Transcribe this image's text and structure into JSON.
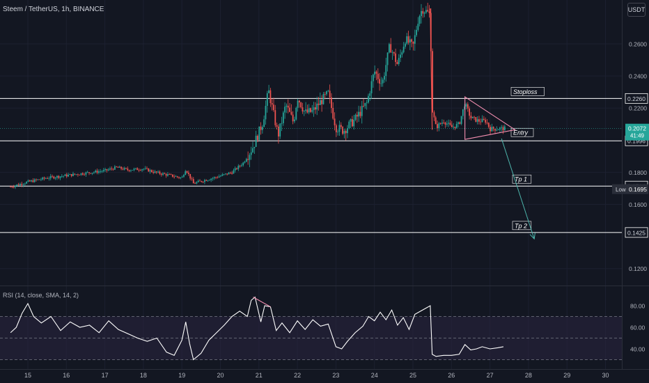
{
  "header": {
    "title": "Steem / TetherUS, 1h, BINANCE",
    "currency_button": "USDT"
  },
  "rsi_panel": {
    "title": "RSI (14, close, SMA, 14, 2)"
  },
  "colors": {
    "background": "#131722",
    "up": "#26a69a",
    "down": "#ef5350",
    "level_line": "#ffffff",
    "triangle": "#f48fb1",
    "projection_arrow": "#4db6ac",
    "rsi_line": "#ffffff",
    "rsi_band": "#2a2540",
    "current_price_bg": "#26a69a",
    "low_label_bg": "#2a2e39"
  },
  "price_labels": {
    "current": "0.2072",
    "countdown": "41:49",
    "low_label": "Low",
    "low_value": "0.1695"
  },
  "chart_data": {
    "type": "candlestick",
    "title": "Steem / TetherUS, 1h, BINANCE",
    "price_axis": {
      "min": 0.11,
      "max": 0.28,
      "ticks": [
        "0.2600",
        "0.2400",
        "0.2200",
        "0.1800",
        "0.1600",
        "0.1200"
      ]
    },
    "time_axis": {
      "ticks": [
        "15",
        "16",
        "17",
        "18",
        "19",
        "20",
        "21",
        "22",
        "23",
        "24",
        "25",
        "26",
        "27",
        "28",
        "29",
        "30"
      ],
      "candle_range": [
        14.55,
        27.4
      ]
    },
    "horizontal_levels": [
      {
        "name": "Stoploss",
        "value": 0.226,
        "label": "0.2260"
      },
      {
        "name": "Entry",
        "value": 0.1996,
        "label": "0.1996"
      },
      {
        "name": "Tp 1",
        "value": 0.1714,
        "label": "0.1714"
      },
      {
        "name": "Tp 2",
        "value": 0.1425,
        "label": "0.1425"
      }
    ],
    "price_path": [
      [
        14.55,
        0.171
      ],
      [
        15.0,
        0.174
      ],
      [
        15.5,
        0.1765
      ],
      [
        16.0,
        0.178
      ],
      [
        16.5,
        0.1795
      ],
      [
        17.0,
        0.181
      ],
      [
        17.3,
        0.183
      ],
      [
        17.6,
        0.1815
      ],
      [
        18.0,
        0.1822
      ],
      [
        18.3,
        0.18
      ],
      [
        18.7,
        0.178
      ],
      [
        19.0,
        0.1765
      ],
      [
        19.1,
        0.182
      ],
      [
        19.3,
        0.173
      ],
      [
        19.5,
        0.1745
      ],
      [
        19.9,
        0.177
      ],
      [
        20.3,
        0.18
      ],
      [
        20.6,
        0.186
      ],
      [
        20.85,
        0.196
      ],
      [
        20.95,
        0.202
      ],
      [
        21.1,
        0.211
      ],
      [
        21.25,
        0.231
      ],
      [
        21.4,
        0.214
      ],
      [
        21.5,
        0.203
      ],
      [
        21.7,
        0.222
      ],
      [
        21.9,
        0.211
      ],
      [
        22.0,
        0.227
      ],
      [
        22.2,
        0.217
      ],
      [
        22.4,
        0.218
      ],
      [
        22.6,
        0.224
      ],
      [
        22.8,
        0.229
      ],
      [
        23.0,
        0.208
      ],
      [
        23.2,
        0.206
      ],
      [
        23.5,
        0.213
      ],
      [
        23.8,
        0.223
      ],
      [
        24.0,
        0.243
      ],
      [
        24.2,
        0.235
      ],
      [
        24.4,
        0.259
      ],
      [
        24.6,
        0.247
      ],
      [
        24.8,
        0.263
      ],
      [
        25.0,
        0.258
      ],
      [
        25.15,
        0.277
      ],
      [
        25.25,
        0.282
      ],
      [
        25.45,
        0.278
      ],
      [
        25.5,
        0.219
      ],
      [
        25.6,
        0.208
      ],
      [
        25.8,
        0.212
      ],
      [
        26.0,
        0.208
      ],
      [
        26.2,
        0.21
      ],
      [
        26.35,
        0.223
      ],
      [
        26.5,
        0.214
      ],
      [
        26.7,
        0.212
      ],
      [
        26.9,
        0.212
      ],
      [
        27.0,
        0.207
      ],
      [
        27.2,
        0.2072
      ],
      [
        27.4,
        0.2072
      ]
    ],
    "annotations": {
      "triangle": [
        [
          26.35,
          0.227
        ],
        [
          27.65,
          0.2065
        ],
        [
          26.35,
          0.2005
        ]
      ],
      "arrow": [
        [
          27.3,
          0.201
        ],
        [
          28.15,
          0.1385
        ]
      ],
      "rsi_divergence": [
        [
          20.85,
          88
        ],
        [
          21.3,
          79
        ]
      ]
    },
    "rsi": {
      "range": [
        25,
        95
      ],
      "ticks": [
        "80.00",
        "60.00",
        "40.00"
      ],
      "levels": [
        70,
        50,
        30
      ],
      "path": [
        [
          14.55,
          55
        ],
        [
          14.7,
          60
        ],
        [
          14.85,
          73
        ],
        [
          15.0,
          82
        ],
        [
          15.15,
          70
        ],
        [
          15.35,
          64
        ],
        [
          15.6,
          70
        ],
        [
          15.85,
          57
        ],
        [
          16.1,
          65
        ],
        [
          16.35,
          60
        ],
        [
          16.6,
          62
        ],
        [
          16.85,
          55
        ],
        [
          17.1,
          66
        ],
        [
          17.35,
          58
        ],
        [
          17.6,
          54
        ],
        [
          17.85,
          50
        ],
        [
          18.1,
          47
        ],
        [
          18.35,
          50
        ],
        [
          18.6,
          37
        ],
        [
          18.8,
          34
        ],
        [
          19.0,
          48
        ],
        [
          19.1,
          65
        ],
        [
          19.2,
          45
        ],
        [
          19.3,
          30
        ],
        [
          19.5,
          36
        ],
        [
          19.7,
          48
        ],
        [
          19.9,
          55
        ],
        [
          20.1,
          62
        ],
        [
          20.3,
          70
        ],
        [
          20.5,
          75
        ],
        [
          20.7,
          70
        ],
        [
          20.8,
          85
        ],
        [
          20.9,
          88
        ],
        [
          21.05,
          65
        ],
        [
          21.15,
          80
        ],
        [
          21.3,
          79
        ],
        [
          21.45,
          57
        ],
        [
          21.6,
          64
        ],
        [
          21.8,
          55
        ],
        [
          22.0,
          66
        ],
        [
          22.2,
          58
        ],
        [
          22.4,
          67
        ],
        [
          22.6,
          61
        ],
        [
          22.8,
          63
        ],
        [
          23.0,
          42
        ],
        [
          23.15,
          40
        ],
        [
          23.3,
          47
        ],
        [
          23.5,
          55
        ],
        [
          23.7,
          61
        ],
        [
          23.85,
          70
        ],
        [
          24.0,
          66
        ],
        [
          24.15,
          74
        ],
        [
          24.3,
          67
        ],
        [
          24.45,
          76
        ],
        [
          24.6,
          62
        ],
        [
          24.75,
          69
        ],
        [
          24.9,
          58
        ],
        [
          25.05,
          72
        ],
        [
          25.2,
          75
        ],
        [
          25.35,
          78
        ],
        [
          25.45,
          80
        ],
        [
          25.5,
          35
        ],
        [
          25.6,
          33
        ],
        [
          25.8,
          34
        ],
        [
          26.0,
          34
        ],
        [
          26.2,
          35
        ],
        [
          26.35,
          44
        ],
        [
          26.5,
          39
        ],
        [
          26.65,
          40
        ],
        [
          26.8,
          42
        ],
        [
          27.0,
          40
        ],
        [
          27.2,
          41
        ],
        [
          27.35,
          42
        ]
      ]
    }
  }
}
